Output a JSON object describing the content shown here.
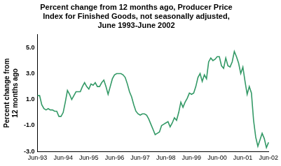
{
  "chart_data": {
    "type": "line",
    "title": [
      "Percent change from 12 months ago, Producer Price",
      "Index for Finished Goods, not seasonally adjusted,",
      "June 1993-June 2002"
    ],
    "y_label": [
      "Percent change from",
      "12 months ago"
    ],
    "categories": [
      "Jun-93",
      null,
      null,
      null,
      null,
      null,
      null,
      null,
      null,
      null,
      null,
      null,
      "Jun-94",
      null,
      null,
      null,
      null,
      null,
      null,
      null,
      null,
      null,
      null,
      null,
      "Jun-95",
      null,
      null,
      null,
      null,
      null,
      null,
      null,
      null,
      null,
      null,
      null,
      "Jun-96",
      null,
      null,
      null,
      null,
      null,
      null,
      null,
      null,
      null,
      null,
      null,
      "Jun-97",
      null,
      null,
      null,
      null,
      null,
      null,
      null,
      null,
      null,
      null,
      null,
      "Jun-98",
      null,
      null,
      null,
      null,
      null,
      null,
      null,
      null,
      null,
      null,
      null,
      "Jun-99",
      null,
      null,
      null,
      null,
      null,
      null,
      null,
      null,
      null,
      null,
      null,
      "Jun-00",
      null,
      null,
      null,
      null,
      null,
      null,
      null,
      null,
      null,
      null,
      null,
      "Jun-01",
      null,
      null,
      null,
      null,
      null,
      null,
      null,
      null,
      null,
      null,
      null,
      "Jun-02"
    ],
    "values": [
      1.3,
      1.3,
      0.6,
      0.3,
      0.2,
      0.3,
      0.2,
      0.2,
      0.1,
      0.1,
      -0.3,
      -0.3,
      0.0,
      0.8,
      1.7,
      1.4,
      1.0,
      1.3,
      1.6,
      1.6,
      1.6,
      2.0,
      2.3,
      2.0,
      1.8,
      2.2,
      2.1,
      2.3,
      2.0,
      2.0,
      2.3,
      2.5,
      2.0,
      1.4,
      2.0,
      2.6,
      2.9,
      3.0,
      3.0,
      3.0,
      2.9,
      2.7,
      2.2,
      1.6,
      1.2,
      0.6,
      0.1,
      -0.1,
      -0.2,
      -0.1,
      -0.1,
      -0.2,
      -0.5,
      -0.9,
      -1.3,
      -1.7,
      -1.6,
      -1.5,
      -1.0,
      -0.9,
      -0.8,
      -0.7,
      -1.1,
      -0.8,
      -0.4,
      -0.6,
      0.0,
      0.8,
      0.4,
      0.8,
      1.1,
      1.5,
      1.4,
      1.5,
      2.0,
      2.7,
      3.0,
      2.4,
      2.9,
      2.6,
      3.9,
      4.2,
      4.0,
      4.1,
      4.3,
      4.3,
      3.6,
      3.4,
      4.2,
      3.6,
      3.5,
      3.9,
      4.7,
      4.3,
      3.8,
      3.0,
      3.5,
      2.4,
      1.4,
      2.0,
      1.5,
      -0.6,
      -1.9,
      -2.6,
      -2.1,
      -1.6,
      -2.0,
      -2.7,
      -2.3
    ],
    "color": "#339966",
    "ylim": [
      -3,
      6
    ],
    "yticks": [
      {
        "value": 5,
        "label": "5.0"
      },
      {
        "value": 3,
        "label": "3.0"
      },
      {
        "value": 1,
        "label": "1.0"
      },
      {
        "value": -1,
        "label": "-1.0"
      },
      {
        "value": -3,
        "label": "-3.0"
      }
    ],
    "grid": false
  }
}
